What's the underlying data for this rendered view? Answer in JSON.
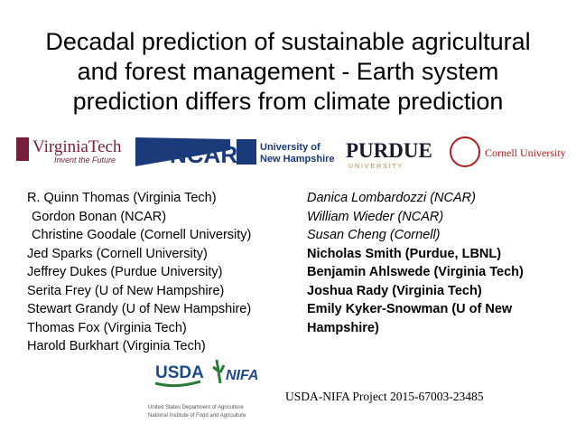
{
  "title": [
    "Decadal prediction of sustainable agricultural",
    "and forest management - Earth system",
    "prediction differs from climate prediction"
  ],
  "logos": {
    "virginia_tech": {
      "name": "VirginiaTech",
      "tagline": "Invent the Future"
    },
    "ncar": {
      "name": "NCAR"
    },
    "unh": {
      "line1": "University of",
      "line2": "New Hampshire"
    },
    "purdue": {
      "name": "PURDUE",
      "sub": "U N I V E R S I T Y"
    },
    "cornell": {
      "name": "Cornell University"
    },
    "usda": {
      "name": "USDA",
      "line1": "United States Department of Agriculture",
      "line2": "National Institute of Food and Agriculture"
    },
    "nifa": {
      "name": "NIFA"
    }
  },
  "authors_left": [
    "R. Quinn Thomas (Virginia Tech)",
    "Gordon Bonan (NCAR)",
    "Christine Goodale (Cornell University)",
    "Jed Sparks (Cornell University)",
    "Jeffrey Dukes (Purdue University)",
    "Serita Frey (U of New Hampshire)",
    "Stewart Grandy (U of New Hampshire)",
    "Thomas Fox (Virginia Tech)",
    "Harold Burkhart (Virginia Tech)"
  ],
  "authors_right_italic": [
    "Danica Lombardozzi (NCAR)",
    "William Wieder (NCAR)",
    "Susan Cheng (Cornell)"
  ],
  "authors_right_bold": [
    "Nicholas Smith (Purdue, LBNL)",
    "Benjamin Ahlswede (Virginia Tech)",
    "Joshua Rady (Virginia Tech)",
    "Emily Kyker-Snowman (U of New Hampshire)"
  ],
  "project": "USDA-NIFA Project 2015-67003-23485"
}
